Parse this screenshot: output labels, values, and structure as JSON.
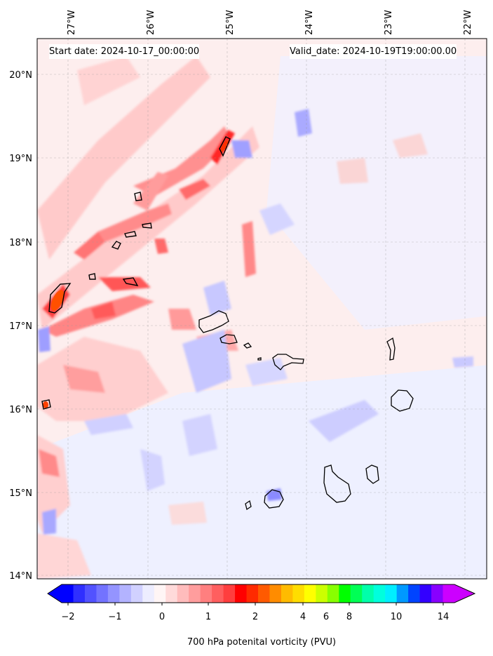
{
  "header": {
    "start_date": "Start date: 2024-10-17_00:00:00",
    "valid_date": "Valid_date: 2024-10-19T19:00:00.00"
  },
  "map": {
    "top_lon_labels": [
      "27°W",
      "26°W",
      "25°W",
      "24°W",
      "23°W",
      "22°W"
    ],
    "left_lat_labels": [
      "20°N",
      "19°N",
      "18°N",
      "17°N",
      "16°N",
      "15°N",
      "14°N"
    ],
    "gridlines": "on",
    "islands": [
      "Santo Antão",
      "São Vicente",
      "Santa Luzia",
      "São Nicolau",
      "Sal",
      "Boa Vista",
      "Maio",
      "Santiago",
      "Fogo",
      "Brava"
    ]
  },
  "colorbar": {
    "tick_labels": [
      "−2",
      "−1",
      "0",
      "1",
      "2",
      "4",
      "6",
      "8",
      "10",
      "14"
    ],
    "label": "700 hPa potenital vorticity (PVU)",
    "colors": [
      "#0000ff",
      "#2f2fff",
      "#5252ff",
      "#7373ff",
      "#9494ff",
      "#b3b3ff",
      "#d1d1ff",
      "#ededff",
      "#fff5f5",
      "#ffdada",
      "#ffbcbc",
      "#ff9d9d",
      "#ff7f7f",
      "#ff5f5f",
      "#ff3e3e",
      "#ff0000",
      "#ff2a00",
      "#ff5a00",
      "#ff8c00",
      "#ffbb00",
      "#ffdd00",
      "#ffff00",
      "#ccff00",
      "#88ff00",
      "#00ff00",
      "#00ff55",
      "#00ffaa",
      "#00ffdd",
      "#00eeff",
      "#0099ff",
      "#0044ff",
      "#3300ff",
      "#8800ff",
      "#cc00ff"
    ]
  }
}
